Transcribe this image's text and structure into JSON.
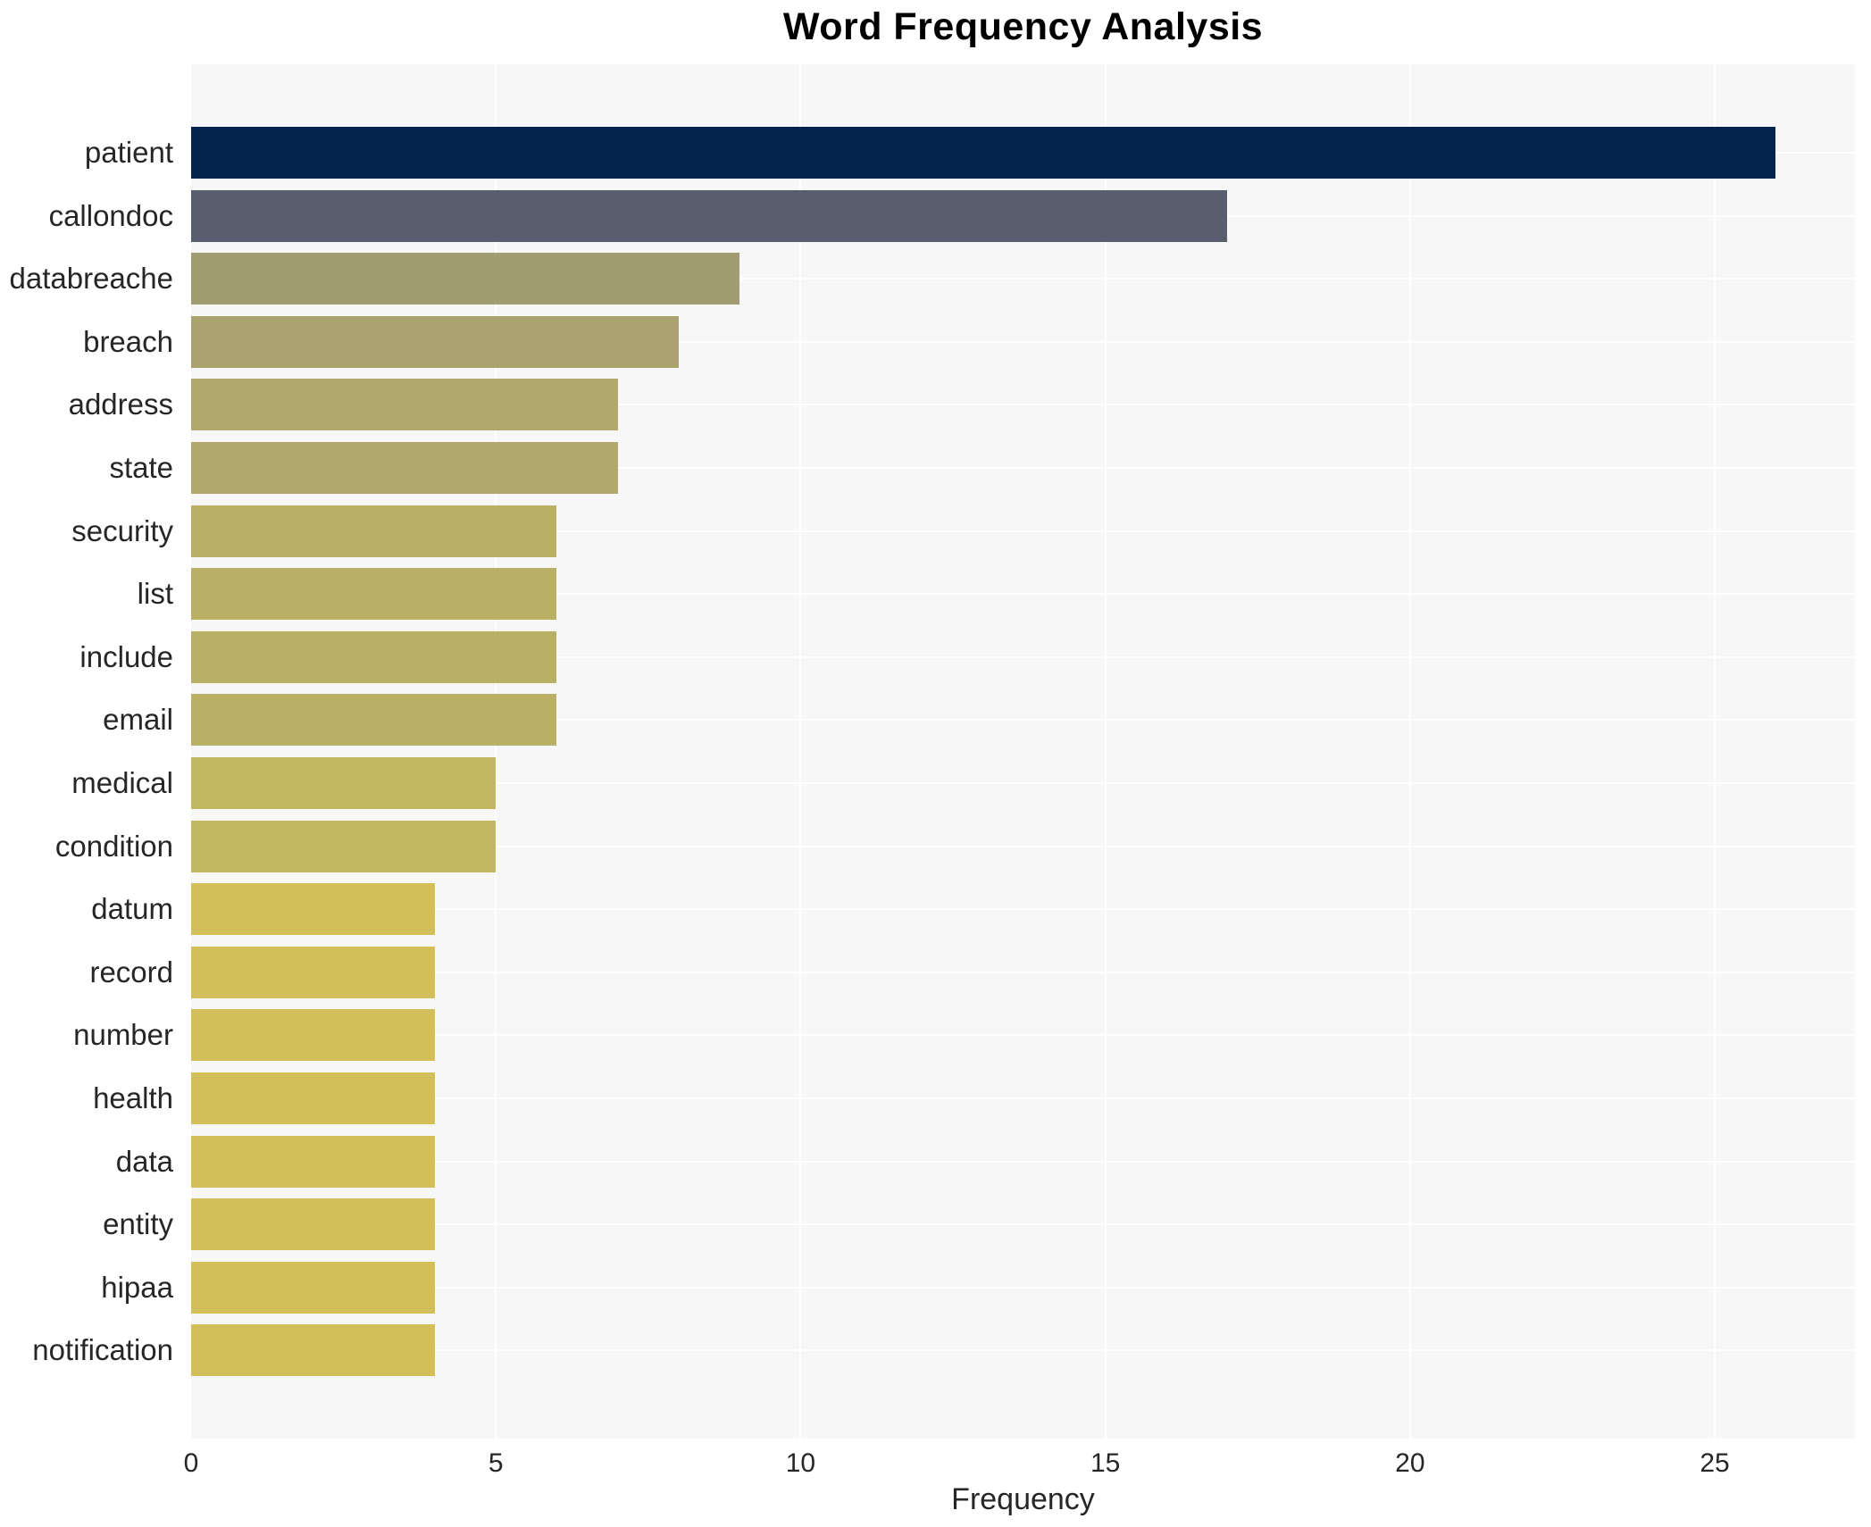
{
  "chart_data": {
    "type": "bar",
    "orientation": "horizontal",
    "title": "Word Frequency Analysis",
    "xlabel": "Frequency",
    "ylabel": "",
    "xlim": [
      0,
      27.3
    ],
    "xticks": [
      0,
      5,
      10,
      15,
      20,
      25
    ],
    "grid": true,
    "legend_position": "none",
    "categories": [
      "patient",
      "callondoc",
      "databreache",
      "breach",
      "address",
      "state",
      "security",
      "list",
      "include",
      "email",
      "medical",
      "condition",
      "datum",
      "record",
      "number",
      "health",
      "data",
      "entity",
      "hipaa",
      "notification"
    ],
    "values": [
      26,
      17,
      9,
      8,
      7,
      7,
      6,
      6,
      6,
      6,
      5,
      5,
      4,
      4,
      4,
      4,
      4,
      4,
      4,
      4
    ],
    "bar_colors": [
      "#01234e",
      "#585e6e",
      "#a29c73",
      "#aaa26f",
      "#b1a96b",
      "#b1a96b",
      "#bab065",
      "#bab065",
      "#bab065",
      "#bab065",
      "#c3b75f",
      "#c3b75f",
      "#d2bf59",
      "#d2bf59",
      "#d2bf59",
      "#d2bf59",
      "#d2bf59",
      "#d2bf59",
      "#d2bf59",
      "#d2bf59"
    ]
  },
  "colors": {
    "figure_bg": "#ffffff",
    "plot_bg": "#f7f7f8",
    "grid": "#ffffff",
    "text": "#262626",
    "title": "#000000"
  }
}
